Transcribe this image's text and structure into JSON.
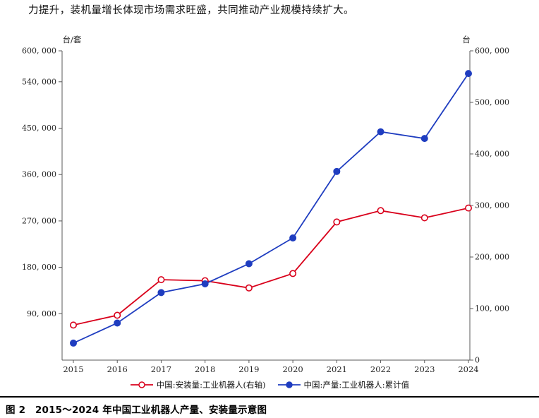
{
  "page": {
    "paragraph": "力提升，装机量增长体现市场需求旺盛，共同推动产业规模持续扩大。",
    "caption": "图 2　2015～2024 年中国工业机器人产量、安装量示意图"
  },
  "chart_data": {
    "type": "line",
    "title": "",
    "x_categories": [
      "2015",
      "2016",
      "2017",
      "2018",
      "2019",
      "2020",
      "2021",
      "2022",
      "2023",
      "2024"
    ],
    "left_axis": {
      "unit_label": "台/套",
      "min": 0,
      "max": 600000,
      "ticks": [
        {
          "value": 90000,
          "label": "90, 000"
        },
        {
          "value": 180000,
          "label": "180, 000"
        },
        {
          "value": 270000,
          "label": "270, 000"
        },
        {
          "value": 360000,
          "label": "360, 000"
        },
        {
          "value": 450000,
          "label": "450, 000"
        },
        {
          "value": 540000,
          "label": "540, 000"
        },
        {
          "value": 600000,
          "label": "600, 000"
        }
      ]
    },
    "right_axis": {
      "unit_label": "台",
      "min": 0,
      "max": 600000,
      "ticks": [
        {
          "value": 0,
          "label": "0"
        },
        {
          "value": 100000,
          "label": "100, 000"
        },
        {
          "value": 200000,
          "label": "200, 000"
        },
        {
          "value": 300000,
          "label": "300, 000"
        },
        {
          "value": 400000,
          "label": "400, 000"
        },
        {
          "value": 500000,
          "label": "500, 000"
        },
        {
          "value": 600000,
          "label": "600, 000"
        }
      ]
    },
    "series": [
      {
        "name": "中国:安装量:工业机器人(右轴)",
        "axis": "right",
        "color": "#d9001b",
        "marker": "open-circle",
        "values": [
          68000,
          87000,
          156000,
          154000,
          140000,
          168000,
          268000,
          290000,
          276000,
          295000
        ]
      },
      {
        "name": "中国:产量:工业机器人:累计值",
        "axis": "left",
        "color": "#1f3dc0",
        "marker": "filled-circle",
        "values": [
          33000,
          72000,
          131000,
          148000,
          187000,
          237000,
          366000,
          443000,
          430000,
          556000
        ]
      }
    ],
    "legend_position": "bottom",
    "grid": false
  }
}
